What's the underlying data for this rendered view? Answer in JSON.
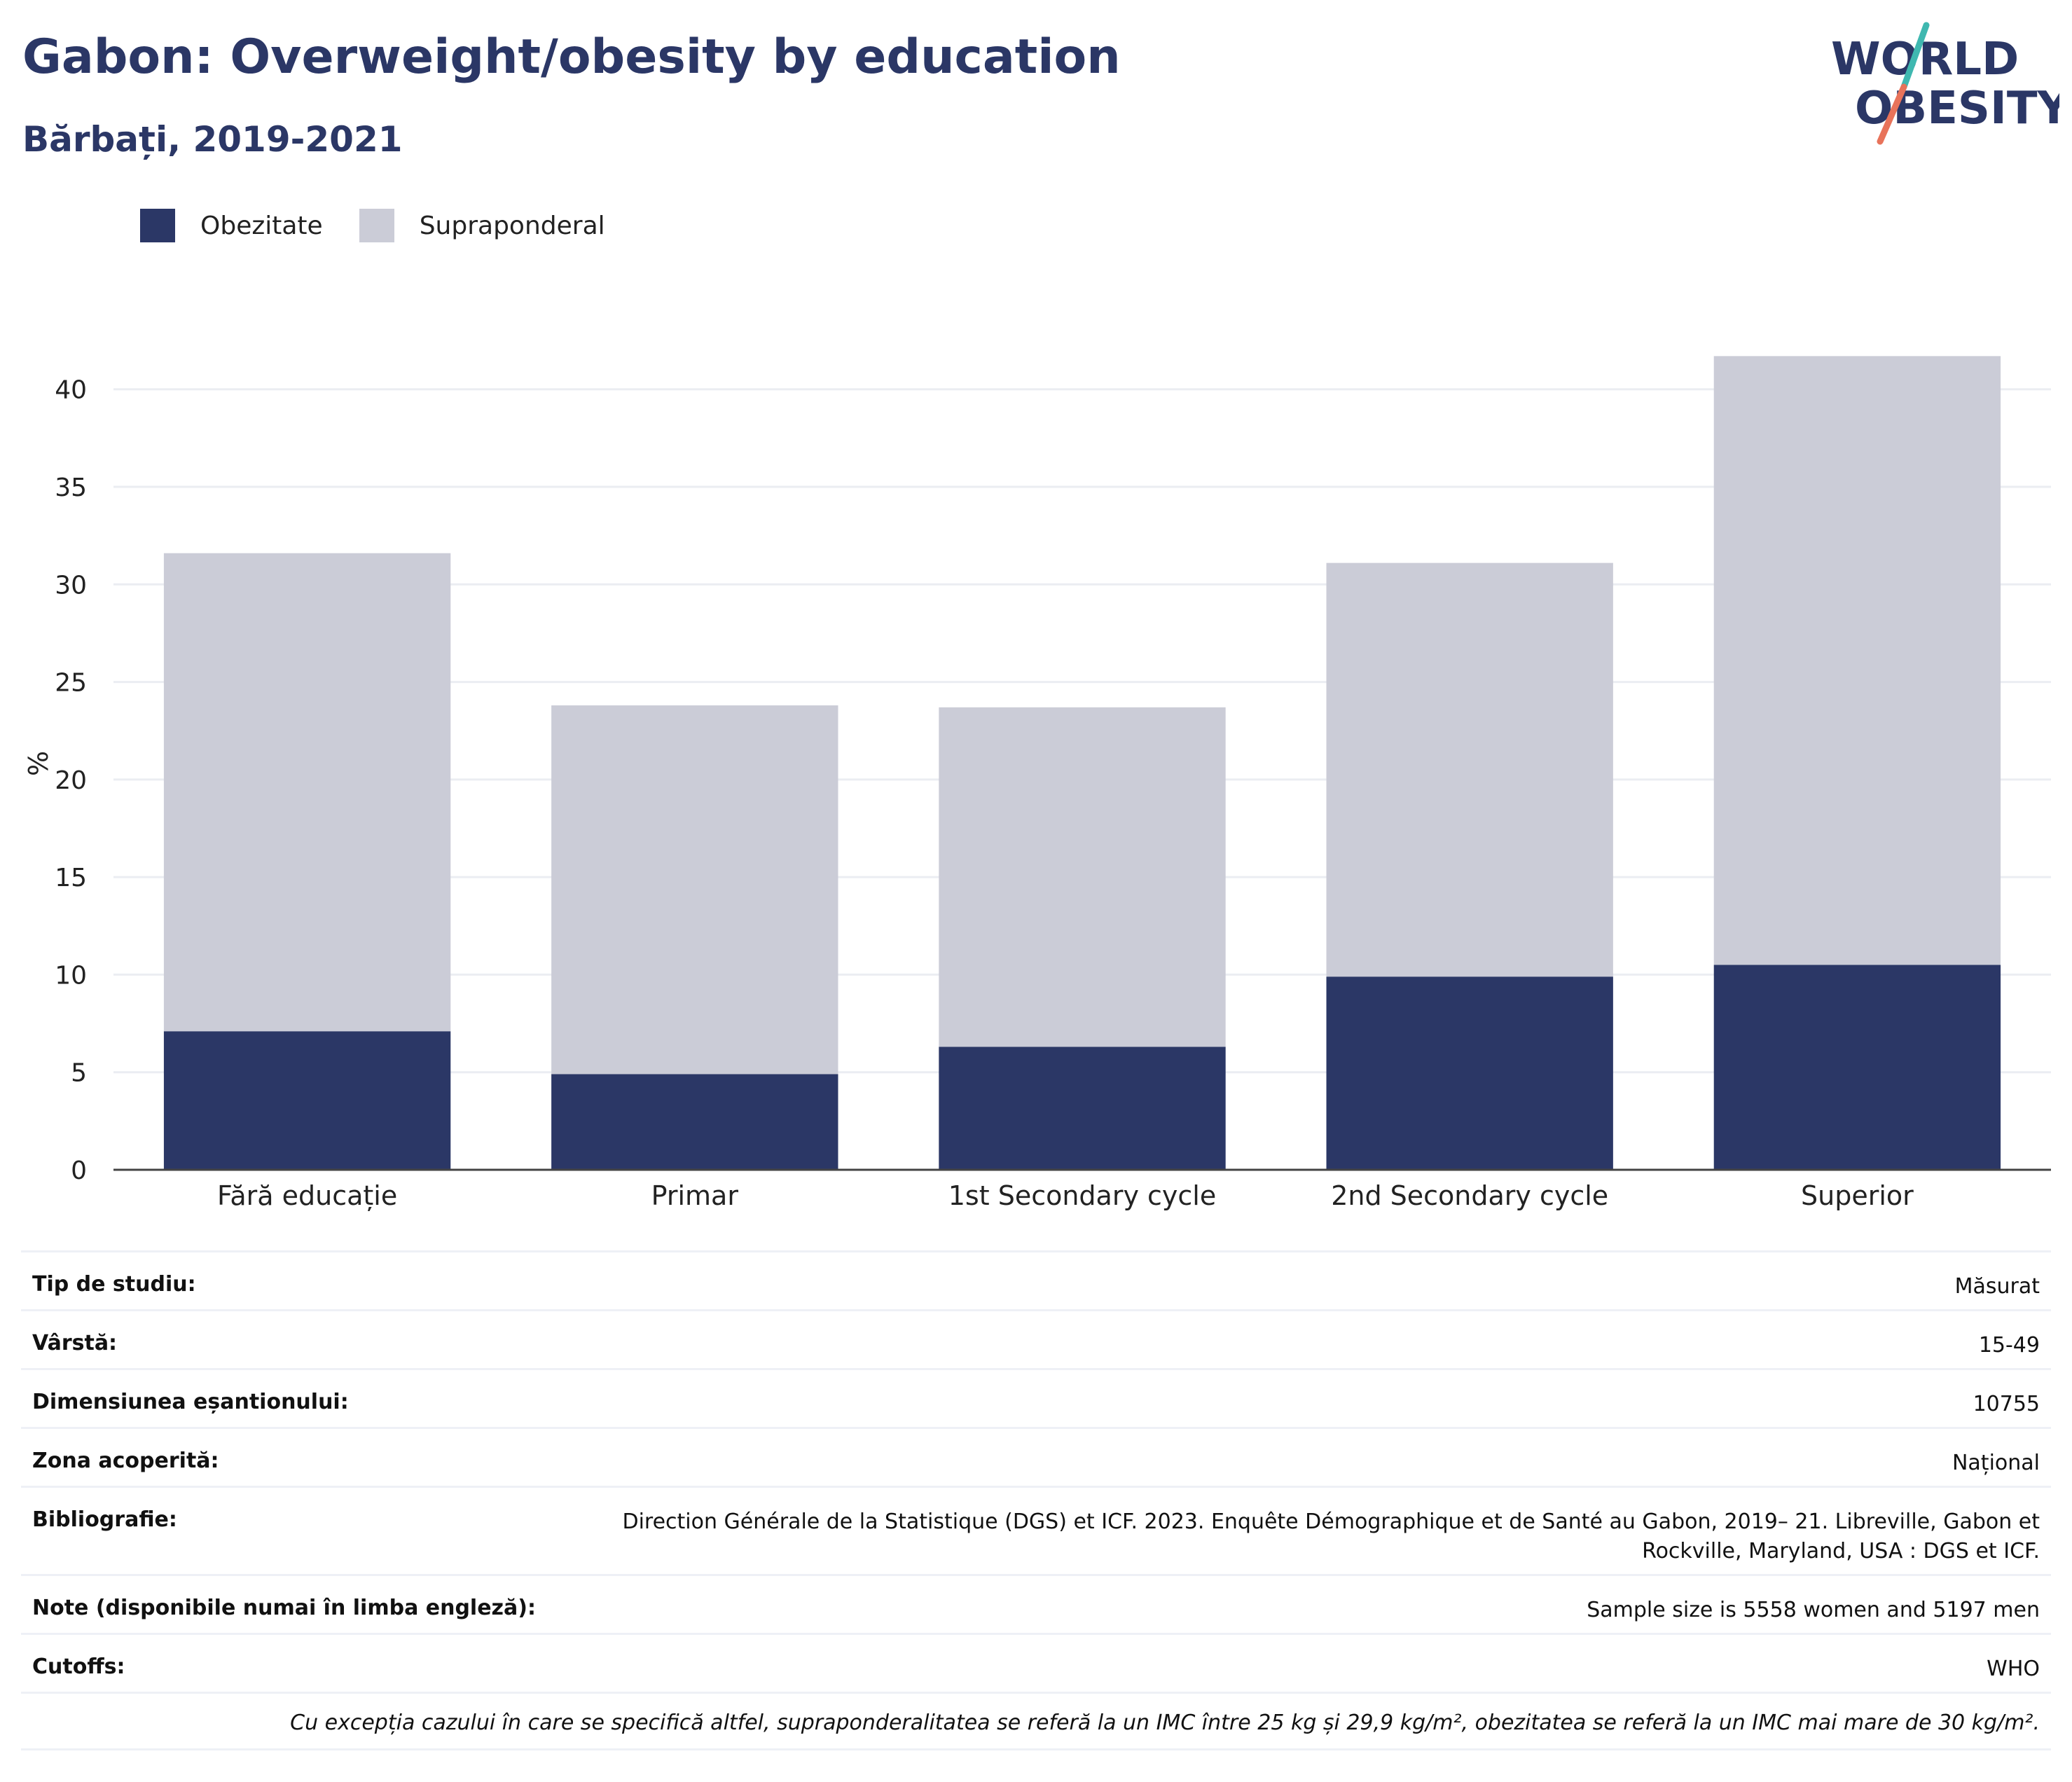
{
  "header": {
    "title": "Gabon: Overweight/obesity by education",
    "subtitle": "Bărbați, 2019-2021"
  },
  "logo": {
    "line1": "WORLD",
    "line2": "OBESITY",
    "colors": {
      "text": "#2b3766",
      "slash_teal": "#3fb8b0",
      "slash_coral": "#e8735a"
    }
  },
  "legend": [
    {
      "label": "Obezitate",
      "color": "#2b3766"
    },
    {
      "label": "Supraponderal",
      "color": "#cbccd7"
    }
  ],
  "chart_data": {
    "type": "bar",
    "stacked": true,
    "categories": [
      "Fără educație",
      "Primar",
      "1st Secondary cycle",
      "2nd Secondary cycle",
      "Superior"
    ],
    "series": [
      {
        "name": "Obezitate",
        "color": "#2b3766",
        "values": [
          7.1,
          4.9,
          6.3,
          9.9,
          10.5
        ]
      },
      {
        "name": "Supraponderal",
        "color": "#cbccd7",
        "values": [
          24.5,
          18.9,
          17.4,
          21.2,
          31.2
        ]
      }
    ],
    "ylabel": "%",
    "ylim": [
      0,
      42
    ],
    "yticks": [
      0,
      5,
      10,
      15,
      20,
      25,
      30,
      35,
      40
    ],
    "grid": true,
    "legend_position": "top-left"
  },
  "info": {
    "rows": [
      {
        "label": "Tip de studiu:",
        "value": "Măsurat"
      },
      {
        "label": "Vârstă:",
        "value": "15-49"
      },
      {
        "label": "Dimensiunea eșantionului:",
        "value": "10755"
      },
      {
        "label": "Zona acoperită:",
        "value": "Național"
      },
      {
        "label": "Bibliografie:",
        "value": "Direction Générale de la Statistique (DGS) et ICF. 2023. Enquête Démographique et de Santé au Gabon, 2019– 21. Libreville, Gabon et Rockville, Maryland, USA : DGS et ICF."
      },
      {
        "label": "Note (disponibile numai în limba engleză):",
        "value": "Sample size is 5558 women and 5197 men"
      },
      {
        "label": "Cutoffs:",
        "value": "WHO"
      }
    ],
    "footnote": "Cu excepția cazului în care se specifică altfel, supraponderalitatea se referă la un IMC între 25 kg și 29,9 kg/m², obezitatea se referă la un IMC mai mare de 30 kg/m²."
  }
}
